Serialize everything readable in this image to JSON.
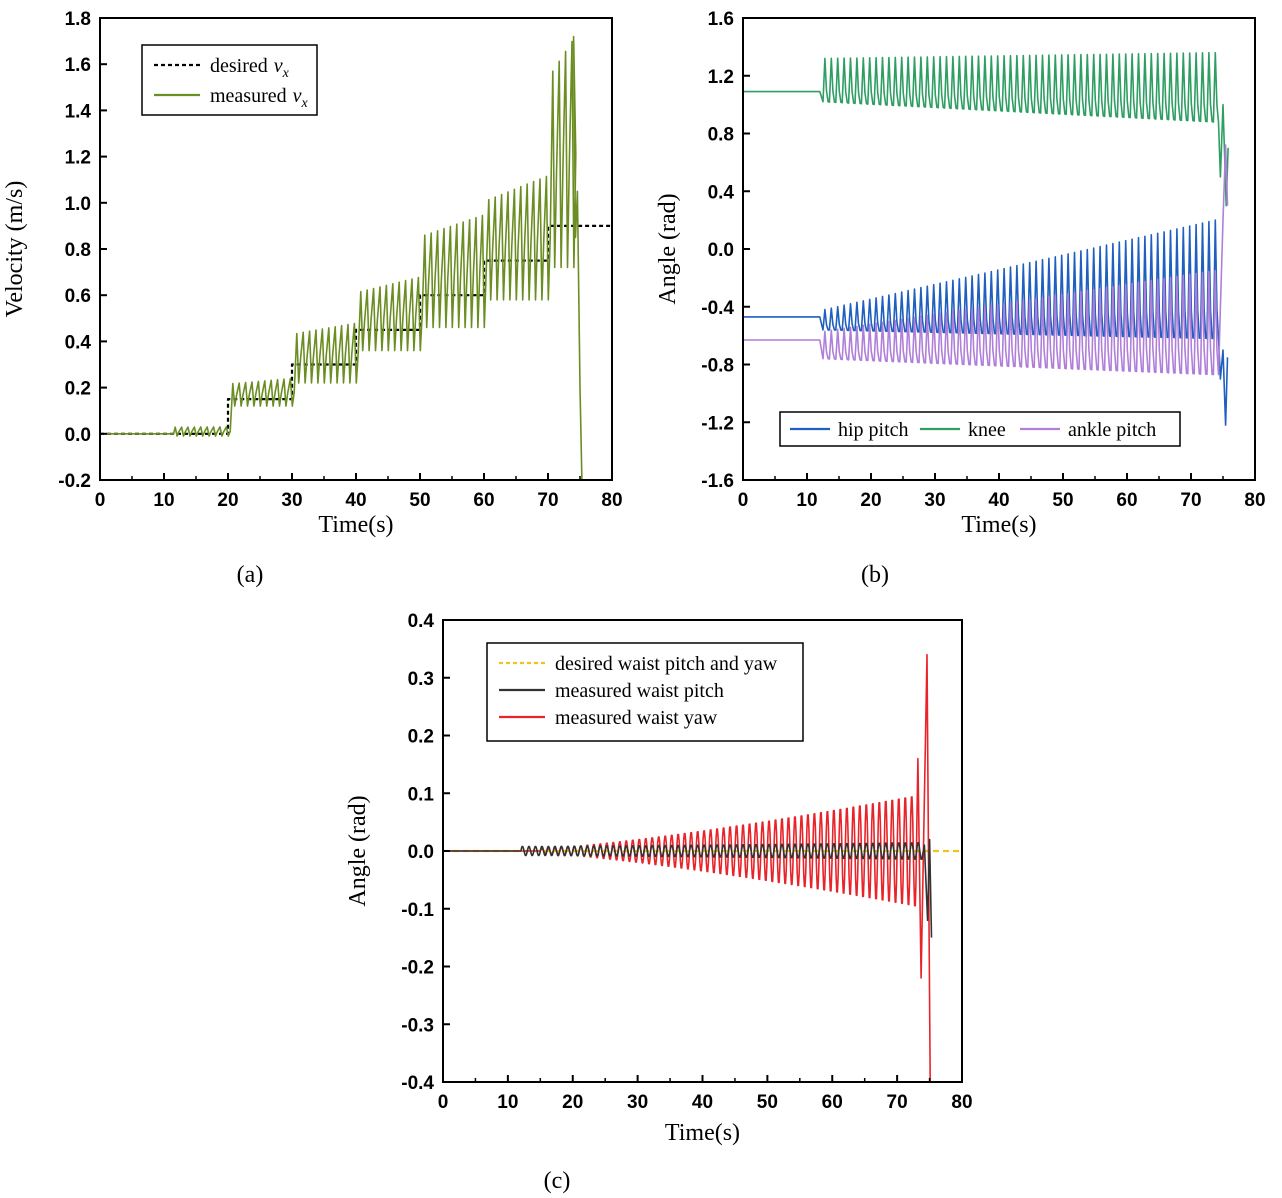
{
  "chart_data": [
    {
      "id": "a",
      "type": "line",
      "caption": "(a)",
      "xlabel": "Time(s)",
      "ylabel": "Velocity (m/s)",
      "xlim": [
        0,
        80
      ],
      "ylim": [
        -0.2,
        1.8
      ],
      "xticks": [
        0,
        10,
        20,
        30,
        40,
        50,
        60,
        70,
        80
      ],
      "yticks": [
        -0.2,
        0.0,
        0.2,
        0.4,
        0.6,
        0.8,
        1.0,
        1.2,
        1.4,
        1.6,
        1.8
      ],
      "ytick_labels": [
        "-0.2",
        "0.0",
        "0.2",
        "0.4",
        "0.6",
        "0.8",
        "1.0",
        "1.2",
        "1.4",
        "1.6",
        "1.8"
      ],
      "legend_position": "top-left",
      "legend": [
        {
          "label": "desired",
          "math": "v",
          "sub": "x",
          "color": "#000000",
          "style": "dashed"
        },
        {
          "label": "measured",
          "math": "v",
          "sub": "x",
          "color": "#6b8e23",
          "style": "solid"
        }
      ],
      "series": [
        {
          "name": "desired vx",
          "color": "#000000",
          "style": "dashed",
          "x": [
            0,
            20,
            20,
            30,
            30,
            40,
            40,
            50,
            50,
            60,
            60,
            70,
            70,
            80
          ],
          "y": [
            0,
            0,
            0.15,
            0.15,
            0.3,
            0.3,
            0.45,
            0.45,
            0.6,
            0.6,
            0.75,
            0.75,
            0.9,
            0.9
          ]
        },
        {
          "name": "measured vx",
          "color": "#6b8e23",
          "style": "solid",
          "generator": "osc",
          "start": 11.5,
          "period": 1.0,
          "end": 75,
          "envelope": [
            {
              "from": 0,
              "to": 20,
              "low": -0.01,
              "high": 0.03
            },
            {
              "from": 20,
              "to": 30,
              "low": 0.12,
              "high": 0.24
            },
            {
              "from": 30,
              "to": 40,
              "low": 0.22,
              "high": 0.48
            },
            {
              "from": 40,
              "to": 50,
              "low": 0.36,
              "high": 0.68
            },
            {
              "from": 50,
              "to": 60,
              "low": 0.46,
              "high": 0.95
            },
            {
              "from": 60,
              "to": 70,
              "low": 0.58,
              "high": 1.12
            },
            {
              "from": 70,
              "to": 74,
              "low": 0.72,
              "high": 1.72
            }
          ],
          "tail": [
            [
              74.0,
              1.72
            ],
            [
              74.3,
              0.85
            ],
            [
              74.6,
              1.05
            ],
            [
              75.0,
              0.2
            ],
            [
              75.3,
              -0.2
            ]
          ]
        }
      ]
    },
    {
      "id": "b",
      "type": "line",
      "caption": "(b)",
      "xlabel": "Time(s)",
      "ylabel": "Angle (rad)",
      "xlim": [
        0,
        80
      ],
      "ylim": [
        -1.6,
        1.6
      ],
      "xticks": [
        0,
        10,
        20,
        30,
        40,
        50,
        60,
        70,
        80
      ],
      "yticks": [
        -1.6,
        -1.2,
        -0.8,
        -0.4,
        0.0,
        0.4,
        0.8,
        1.2,
        1.6
      ],
      "ytick_labels": [
        "-1.6",
        "-1.2",
        "-0.8",
        "-0.4",
        "0.0",
        "0.4",
        "0.8",
        "1.2",
        "1.6"
      ],
      "legend_position": "bottom",
      "legend": [
        {
          "label": "hip pitch",
          "color": "#1f5fbf"
        },
        {
          "label": "knee",
          "color": "#2e9e63"
        },
        {
          "label": "ankle pitch",
          "color": "#b07fd8"
        }
      ],
      "series": [
        {
          "name": "knee",
          "color": "#2e9e63",
          "generator": "spike",
          "flat": 1.09,
          "start": 12.5,
          "period": 1.0,
          "end": 74.5,
          "peak_start": 1.32,
          "peak_end": 1.36,
          "low_start": 1.02,
          "low_end": 0.88,
          "tail": [
            [
              74.6,
              0.5
            ],
            [
              75.0,
              1.0
            ],
            [
              75.5,
              0.3
            ],
            [
              75.8,
              0.7
            ]
          ]
        },
        {
          "name": "hip pitch",
          "color": "#1f5fbf",
          "generator": "spike",
          "flat": -0.47,
          "start": 12.5,
          "period": 1.0,
          "end": 74.5,
          "peak_start": -0.42,
          "peak_end": 0.2,
          "low_start": -0.56,
          "low_end": -0.62,
          "tail": [
            [
              74.6,
              -0.9
            ],
            [
              75.0,
              -0.7
            ],
            [
              75.4,
              -1.22
            ],
            [
              75.7,
              -0.75
            ]
          ]
        },
        {
          "name": "ankle pitch",
          "color": "#b07fd8",
          "generator": "spike",
          "flat": -0.63,
          "start": 12.5,
          "period": 1.0,
          "end": 74.5,
          "peak_start": -0.57,
          "peak_end": -0.15,
          "low_start": -0.76,
          "low_end": -0.87,
          "tail": [
            [
              74.6,
              -0.4
            ],
            [
              75.0,
              0.2
            ],
            [
              75.4,
              0.72
            ],
            [
              75.7,
              0.3
            ]
          ]
        }
      ]
    },
    {
      "id": "c",
      "type": "line",
      "caption": "(c)",
      "xlabel": "Time(s)",
      "ylabel": "Angle (rad)",
      "xlim": [
        0,
        80
      ],
      "ylim": [
        -0.4,
        0.4
      ],
      "xticks": [
        0,
        10,
        20,
        30,
        40,
        50,
        60,
        70,
        80
      ],
      "yticks": [
        -0.4,
        -0.3,
        -0.2,
        -0.1,
        0.0,
        0.1,
        0.2,
        0.3,
        0.4
      ],
      "ytick_labels": [
        "-0.4",
        "-0.3",
        "-0.2",
        "-0.1",
        "0.0",
        "0.1",
        "0.2",
        "0.3",
        "0.4"
      ],
      "legend_position": "top",
      "legend": [
        {
          "label": "desired waist pitch and yaw",
          "color": "#f0c419",
          "style": "dashed"
        },
        {
          "label": "measured waist pitch",
          "color": "#333333",
          "style": "solid"
        },
        {
          "label": "measured waist yaw",
          "color": "#e8242a",
          "style": "solid"
        }
      ],
      "series": [
        {
          "name": "desired waist pitch and yaw",
          "color": "#f0c419",
          "style": "dashed",
          "x": [
            0,
            80
          ],
          "y": [
            0,
            0
          ]
        },
        {
          "name": "measured waist yaw",
          "color": "#e8242a",
          "generator": "sine",
          "start": 15,
          "period": 1.0,
          "end": 73,
          "amp_start": 0.004,
          "amp_end": 0.1,
          "offset": 0.0,
          "tail": [
            [
              73.2,
              0.16
            ],
            [
              73.7,
              -0.22
            ],
            [
              74.6,
              0.34
            ],
            [
              75.1,
              -0.4
            ]
          ]
        },
        {
          "name": "measured waist pitch",
          "color": "#333333",
          "generator": "sine",
          "start": 12,
          "period": 1.0,
          "end": 74,
          "amp_start": 0.008,
          "amp_end": 0.015,
          "offset": 0.0,
          "tail": [
            [
              74.2,
              0.01
            ],
            [
              74.7,
              -0.12
            ],
            [
              75.0,
              0.02
            ],
            [
              75.3,
              -0.15
            ]
          ]
        }
      ]
    }
  ]
}
